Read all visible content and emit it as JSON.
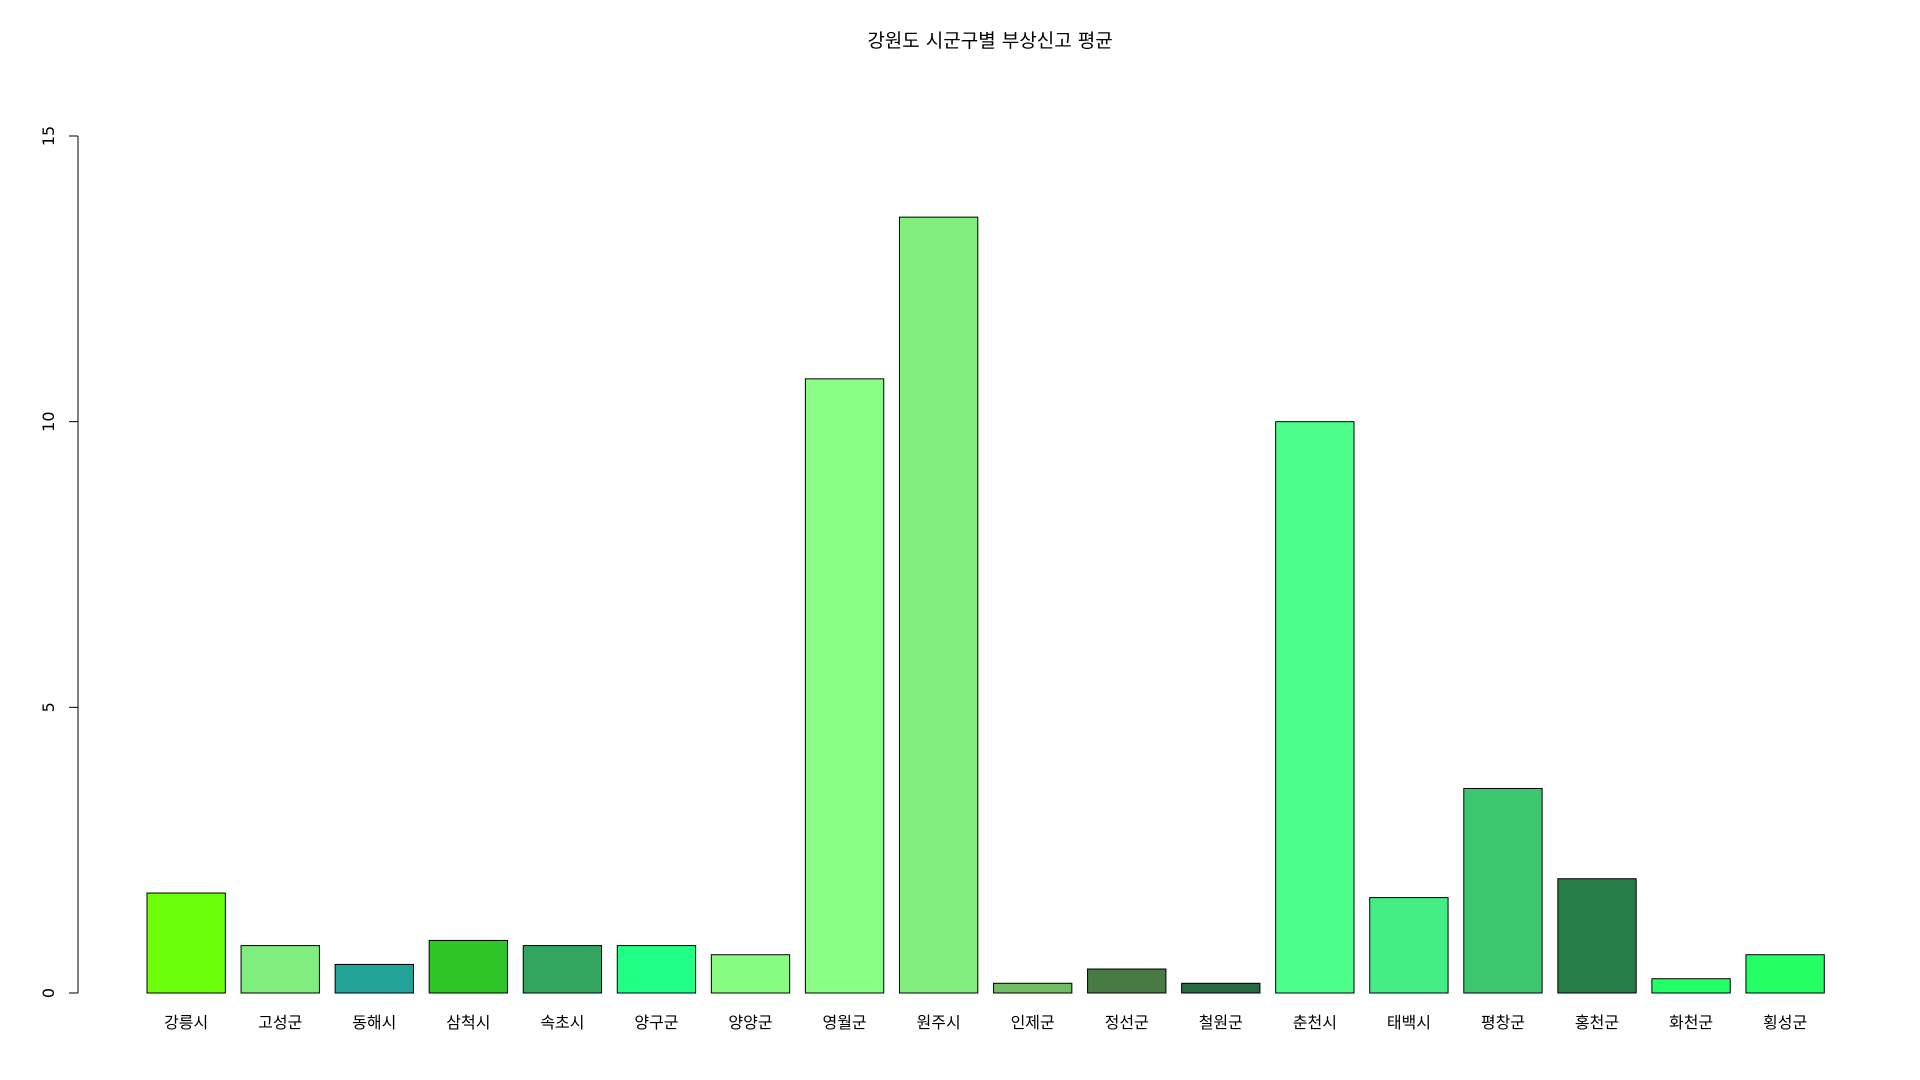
{
  "chart_data": {
    "type": "bar",
    "title": "강원도 시군구별 부상신고 평균",
    "xlabel": "",
    "ylabel": "",
    "ylim": [
      0,
      15
    ],
    "yticks": [
      0,
      5,
      10,
      15
    ],
    "grid": false,
    "legend": "none",
    "categories": [
      "강릉시",
      "고성군",
      "동해시",
      "삼척시",
      "속초시",
      "양구군",
      "양양군",
      "영월군",
      "원주시",
      "인제군",
      "정선군",
      "철원군",
      "춘천시",
      "태백시",
      "평창군",
      "홍천군",
      "화천군",
      "횡성군"
    ],
    "values": [
      1.75,
      0.83,
      0.5,
      0.92,
      0.83,
      0.83,
      0.67,
      10.75,
      13.58,
      0.17,
      0.42,
      0.17,
      10.0,
      1.67,
      3.58,
      2.0,
      0.25,
      0.67
    ],
    "colors": [
      "#6DFF0A",
      "#80ED7F",
      "#21A398",
      "#2DC528",
      "#32A65F",
      "#22FF87",
      "#88FB83",
      "#8AFE87",
      "#82EE7E",
      "#70BD64",
      "#487B43",
      "#28693F",
      "#4DFF8A",
      "#45EE84",
      "#3CC66E",
      "#267D46",
      "#22FF67",
      "#24FF65"
    ]
  }
}
